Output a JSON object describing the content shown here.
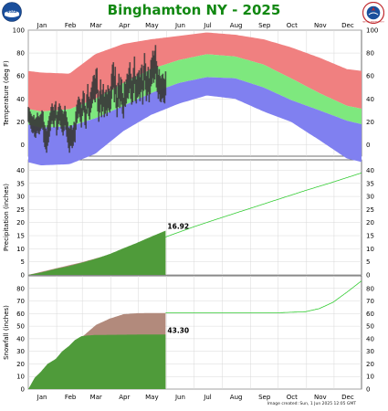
{
  "header": {
    "title": "Binghamton NY - 2025",
    "image_created": "Image created: Sun, 1 Jun 2025 12:05 GMT",
    "left_logo_text": "NOAA",
    "right_logo_text": "NATIONAL WEATHER SERVICE"
  },
  "colors": {
    "record_high_band": "#f08080",
    "normal_band": "#7ee87e",
    "record_low_band": "#8080f0",
    "actual_temp_bar": "#3a3a3a",
    "observed_fill": "#4f9b3a",
    "normal_fill": "#b28a7c",
    "normal_line": "#33cc33",
    "title": "#118811"
  },
  "months": [
    "Jan",
    "Feb",
    "Mar",
    "Apr",
    "May",
    "Jun",
    "Jul",
    "Aug",
    "Sep",
    "Oct",
    "Nov",
    "Dec"
  ],
  "chart_data": [
    {
      "type": "area",
      "panel": "temperature",
      "ylabel": "Temperature (deg F)",
      "ylim": [
        -10,
        100
      ],
      "yticks": [
        0,
        20,
        40,
        60,
        80,
        100
      ],
      "grid": true,
      "series": [
        {
          "values_by_month_mid": {
            "day": [
              15,
              46,
              74,
              105,
              135,
              166,
              196,
              227,
              258,
              288,
              319,
              349
            ],
            "record_high": [
              63,
              62,
              79,
              88,
              92,
              95,
              98,
              96,
              92,
              85,
              76,
              66
            ],
            "normal_high": [
              29,
              31,
              40,
              54,
              66,
              74,
              79,
              77,
              70,
              58,
              45,
              34
            ],
            "normal_low": [
              15,
              16,
              23,
              34,
              45,
              54,
              59,
              58,
              50,
              39,
              30,
              21
            ],
            "record_low": [
              -18,
              -17,
              -8,
              12,
              26,
              36,
              43,
              40,
              29,
              20,
              4,
              -12
            ]
          }
        },
        {
          "daily_2025_jan1_to_may31": {
            "first_day": 1,
            "highs": [
              33,
              32,
              29,
              27,
              25,
              24,
              26,
              22,
              23,
              24,
              28,
              25,
              24,
              26,
              27,
              30,
              29,
              20,
              17,
              14,
              12,
              17,
              21,
              25,
              28,
              33,
              36,
              33,
              30,
              35,
              38,
              26,
              29,
              33,
              36,
              34,
              31,
              30,
              27,
              29,
              34,
              29,
              24,
              20,
              15,
              14,
              17,
              17,
              13,
              15,
              20,
              19,
              29,
              35,
              39,
              42,
              40,
              37,
              32,
              40,
              47,
              45,
              34,
              31,
              44,
              53,
              42,
              40,
              46,
              50,
              55,
              60,
              61,
              58,
              66,
              67,
              48,
              40,
              47,
              57,
              44,
              48,
              53,
              42,
              46,
              48,
              44,
              52,
              49,
              47,
              51,
              62,
              70,
              72,
              60,
              68,
              52,
              41,
              54,
              62,
              52,
              59,
              57,
              45,
              41,
              55,
              53,
              57,
              62,
              61,
              67,
              72,
              62,
              56,
              59,
              67,
              77,
              60,
              57,
              62,
              63,
              65,
              59,
              67,
              70,
              56,
              69,
              80,
              71,
              60,
              64,
              68,
              58,
              66,
              74,
              76,
              82,
              78,
              82,
              87,
              73,
              69,
              61,
              66,
              60,
              58,
              61,
              62,
              58,
              57,
              64
            ],
            "lows": [
              20,
              19,
              17,
              14,
              11,
              10,
              11,
              7,
              6,
              10,
              12,
              10,
              9,
              12,
              14,
              15,
              13,
              2,
              -2,
              -4,
              -7,
              -1,
              2,
              7,
              12,
              18,
              21,
              18,
              15,
              21,
              23,
              8,
              13,
              18,
              21,
              17,
              14,
              11,
              8,
              12,
              17,
              13,
              7,
              2,
              -3,
              -7,
              -1,
              -1,
              -3,
              -1,
              3,
              2,
              13,
              19,
              23,
              27,
              24,
              20,
              15,
              25,
              30,
              28,
              17,
              14,
              27,
              32,
              25,
              22,
              28,
              32,
              36,
              40,
              39,
              37,
              44,
              45,
              29,
              20,
              28,
              35,
              24,
              29,
              33,
              24,
              27,
              30,
              25,
              32,
              30,
              28,
              31,
              40,
              48,
              50,
              37,
              44,
              32,
              24,
              33,
              40,
              32,
              38,
              35,
              27,
              23,
              34,
              33,
              36,
              41,
              40,
              45,
              49,
              40,
              35,
              37,
              45,
              53,
              38,
              36,
              41,
              42,
              44,
              38,
              46,
              48,
              35,
              47,
              56,
              48,
              38,
              43,
              46,
              37,
              44,
              51,
              53,
              58,
              54,
              57,
              62,
              50,
              46,
              40,
              44,
              38,
              37,
              40,
              41,
              37,
              36,
              43
            ]
          }
        }
      ]
    },
    {
      "type": "area",
      "panel": "precipitation",
      "ylabel": "Precipitation (inches)",
      "ylim": [
        0,
        44
      ],
      "yticks": [
        0,
        5,
        10,
        15,
        20,
        25,
        30,
        35,
        40
      ],
      "grid": true,
      "annotation": "16.92",
      "series": [
        {
          "name": "",
          "values_by_day": {
            "day": [
              1,
              31,
              59,
              90,
              120,
              151,
              181,
              212,
              243,
              273,
              304,
              334,
              365
            ],
            "normal_cumulative": [
              0,
              2.5,
              4.8,
              7.8,
              11.0,
              14.5,
              18.3,
              21.9,
              25.4,
              28.8,
              32.3,
              35.5,
              39.0
            ]
          }
        },
        {
          "name": "",
          "values_by_day": {
            "day": [
              1,
              15,
              31,
              45,
              59,
              75,
              90,
              105,
              120,
              135,
              151
            ],
            "observed_cumulative": [
              0,
              0.9,
              2.3,
              3.3,
              4.6,
              6.2,
              8.0,
              10.2,
              12.3,
              14.6,
              16.92
            ]
          }
        }
      ]
    },
    {
      "type": "area",
      "panel": "snowfall",
      "ylabel": "Snowfall (inches)",
      "ylim": [
        0,
        90
      ],
      "yticks": [
        0,
        10,
        20,
        30,
        40,
        50,
        60,
        70,
        80
      ],
      "grid": true,
      "annotation": "43.30",
      "series": [
        {
          "name": "",
          "values_by_day": {
            "day": [
              1,
              15,
              31,
              45,
              59,
              75,
              90,
              105,
              120,
              151,
              181,
              212,
              243,
              273,
              304,
              319,
              334,
              349,
              365
            ],
            "normal_cumulative": [
              0,
              10,
              21,
              31,
              41,
              51,
              56,
              59.5,
              60.3,
              60.5,
              60.5,
              60.5,
              60.5,
              60.6,
              61.5,
              64,
              69,
              77,
              86
            ]
          }
        },
        {
          "name": "",
          "values_by_day": {
            "day": [
              1,
              8,
              15,
              22,
              31,
              38,
              45,
              52,
              59,
              66,
              74,
              90,
              105,
              120,
              151
            ],
            "observed_cumulative": [
              0,
              9,
              14,
              20,
              24,
              30,
              34,
              39,
              42,
              42.6,
              43.0,
              43.1,
              43.2,
              43.3,
              43.3
            ]
          }
        }
      ]
    }
  ]
}
